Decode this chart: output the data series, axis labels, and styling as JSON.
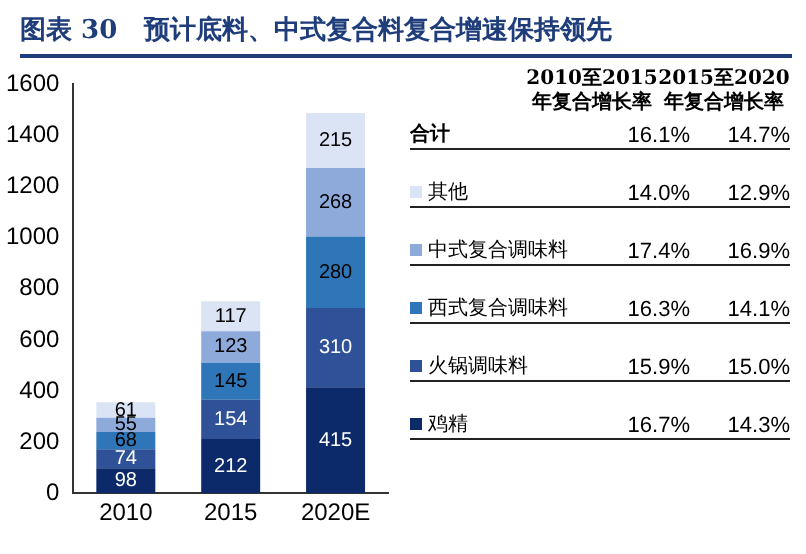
{
  "chart_data": {
    "type": "bar",
    "title": "图表 30   预计底料、中式复合料复合增速保持领先",
    "categories": [
      "2010",
      "2015",
      "2020E"
    ],
    "series": [
      {
        "name": "鸡精",
        "color": "#0c2a6a",
        "values": [
          98,
          212,
          415
        ]
      },
      {
        "name": "火锅调味料",
        "color": "#2f5198",
        "values": [
          74,
          154,
          310
        ]
      },
      {
        "name": "西式复合调味料",
        "color": "#2e76b7",
        "values": [
          68,
          145,
          280
        ]
      },
      {
        "name": "中式复合调味料",
        "color": "#8eaadb",
        "values": [
          55,
          123,
          268
        ]
      },
      {
        "name": "其他",
        "color": "#dbe4f4",
        "values": [
          61,
          117,
          215
        ]
      }
    ],
    "stacked": true,
    "data_labels": true,
    "grid": false,
    "legend": "right",
    "ylim": [
      0,
      1600
    ],
    "yticks": [
      0,
      200,
      400,
      600,
      800,
      1000,
      1200,
      1400,
      1600
    ],
    "annotations": [
      "2010至2015年复合增长率",
      "2015至2020年复合增长率",
      "合计",
      "16.1%",
      "14.7%",
      "14.0%",
      "12.9%",
      "17.4%",
      "16.9%",
      "16.3%",
      "14.1%",
      "15.9%",
      "15.0%",
      "16.7%",
      "14.3%"
    ]
  }
}
